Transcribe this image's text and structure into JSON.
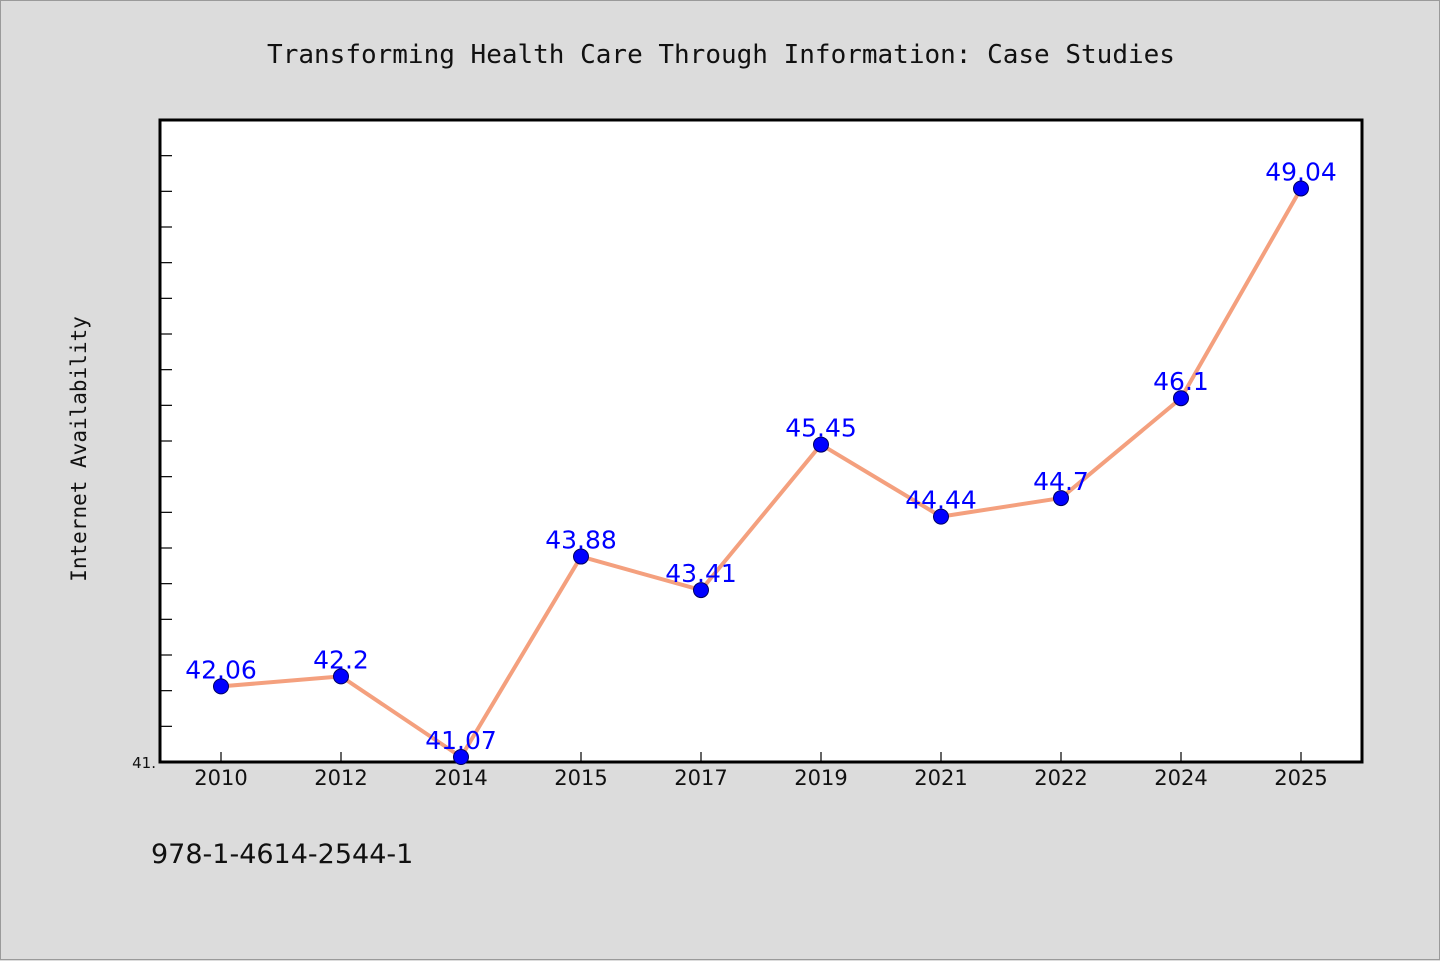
{
  "chart_data": {
    "type": "line",
    "title": "Transforming Health Care Through Information: Case Studies",
    "xlabel": "",
    "ylabel": "Internet Availability",
    "categories": [
      "2010",
      "2012",
      "2014",
      "2015",
      "2017",
      "2019",
      "2021",
      "2022",
      "2024",
      "2025"
    ],
    "series": [
      {
        "values": [
          42.06,
          42.2,
          41.07,
          43.88,
          43.41,
          45.45,
          44.44,
          44.7,
          46.1,
          49.04
        ],
        "data_labels": [
          "42.06",
          "42.2",
          "41.07",
          "43.88",
          "43.41",
          "45.45",
          "44.44",
          "44.7",
          "46.1",
          "49.04"
        ]
      }
    ],
    "ylim": [
      41,
      50
    ],
    "y_tick_labels": [
      "41."
    ],
    "grid": false,
    "legend": "none",
    "colors": {
      "line": "#f4a07e",
      "marker": "#0000ff",
      "label": "#0000ff",
      "plot_background": "#ffffff",
      "figure_background": "#dcdcdc"
    }
  },
  "footer": {
    "isbn": "978-1-4614-2544-1"
  }
}
